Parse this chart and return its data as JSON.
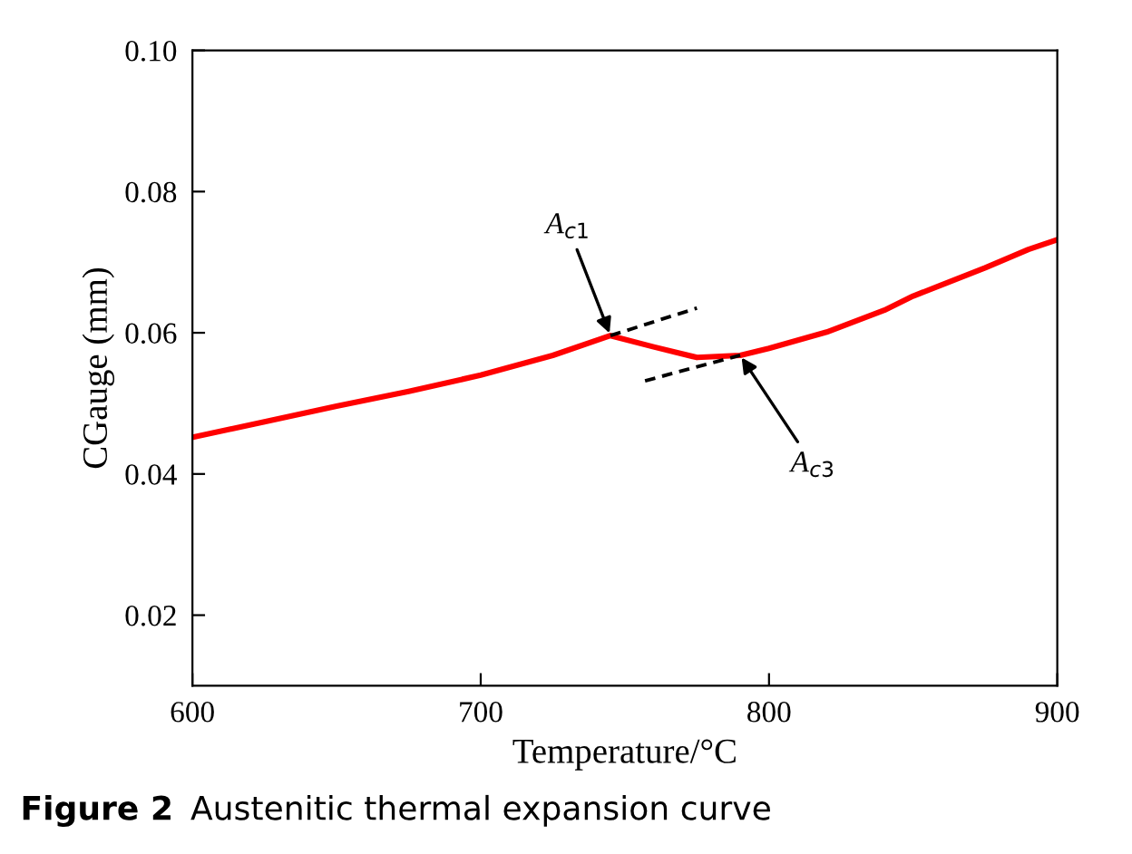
{
  "chart_data": {
    "type": "line",
    "xlabel": "Temperature/°C",
    "ylabel": "CGauge (mm)",
    "xlim": [
      600,
      900
    ],
    "xticks": [
      600,
      700,
      800,
      900
    ],
    "ylim": [
      0.01,
      0.1
    ],
    "yticks": [
      {
        "value": 0.02,
        "label": "0.02"
      },
      {
        "value": 0.04,
        "label": "0.04"
      },
      {
        "value": 0.06,
        "label": "0.06"
      },
      {
        "value": 0.08,
        "label": "0.08"
      },
      {
        "value": 0.1,
        "label": "0.10"
      }
    ],
    "grid": false,
    "legend": false,
    "marker": "none",
    "series": [
      {
        "color": "#ff0000",
        "line_style": "solid",
        "x": [
          600,
          625,
          650,
          675,
          700,
          725,
          745,
          760,
          775,
          790,
          800,
          820,
          840,
          850,
          860,
          875,
          890,
          900
        ],
        "values": [
          0.0452,
          0.0474,
          0.0496,
          0.0517,
          0.054,
          0.0568,
          0.0596,
          0.058,
          0.0565,
          0.0568,
          0.0578,
          0.0601,
          0.0632,
          0.0652,
          0.0668,
          0.0692,
          0.0718,
          0.0732
        ]
      },
      {
        "color": "#000000",
        "line_style": "dashed",
        "x": [
          745,
          775
        ],
        "values": [
          0.0596,
          0.0635
        ]
      },
      {
        "color": "#000000",
        "line_style": "dashed",
        "x": [
          757,
          790
        ],
        "values": [
          0.0532,
          0.0568
        ]
      }
    ],
    "annotations": [
      {
        "text": "A$_{c1}$",
        "x": 745,
        "y": 0.0596
      },
      {
        "text": "A$_{c3}$",
        "x": 790,
        "y": 0.0568
      },
      "Figure 2",
      "Austenitic thermal expansion curve"
    ]
  }
}
